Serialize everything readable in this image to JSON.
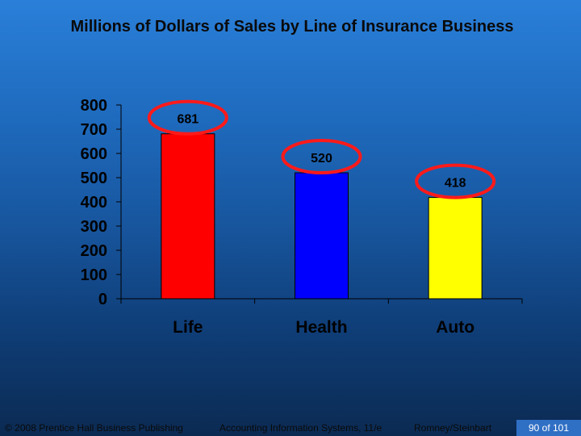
{
  "chart_data": {
    "type": "bar",
    "title": "Millions of Dollars of Sales by Line of Insurance Business",
    "categories": [
      "Life",
      "Health",
      "Auto"
    ],
    "values": [
      681,
      520,
      418
    ],
    "data_labels": [
      "681",
      "520",
      "418"
    ],
    "bar_colors": [
      "#ff0000",
      "#0000ff",
      "#ffff00"
    ],
    "highlight_color": "#ff1a1a",
    "ylim": [
      0,
      800
    ],
    "yticks": [
      0,
      100,
      200,
      300,
      400,
      500,
      600,
      700,
      800
    ],
    "grid": false,
    "legend": false
  },
  "footer": {
    "copyright": "© 2008 Prentice Hall Business Publishing",
    "book": "Accounting Information Systems, 11/e",
    "authors": "Romney/Steinbart",
    "slide": "90 of 101"
  }
}
